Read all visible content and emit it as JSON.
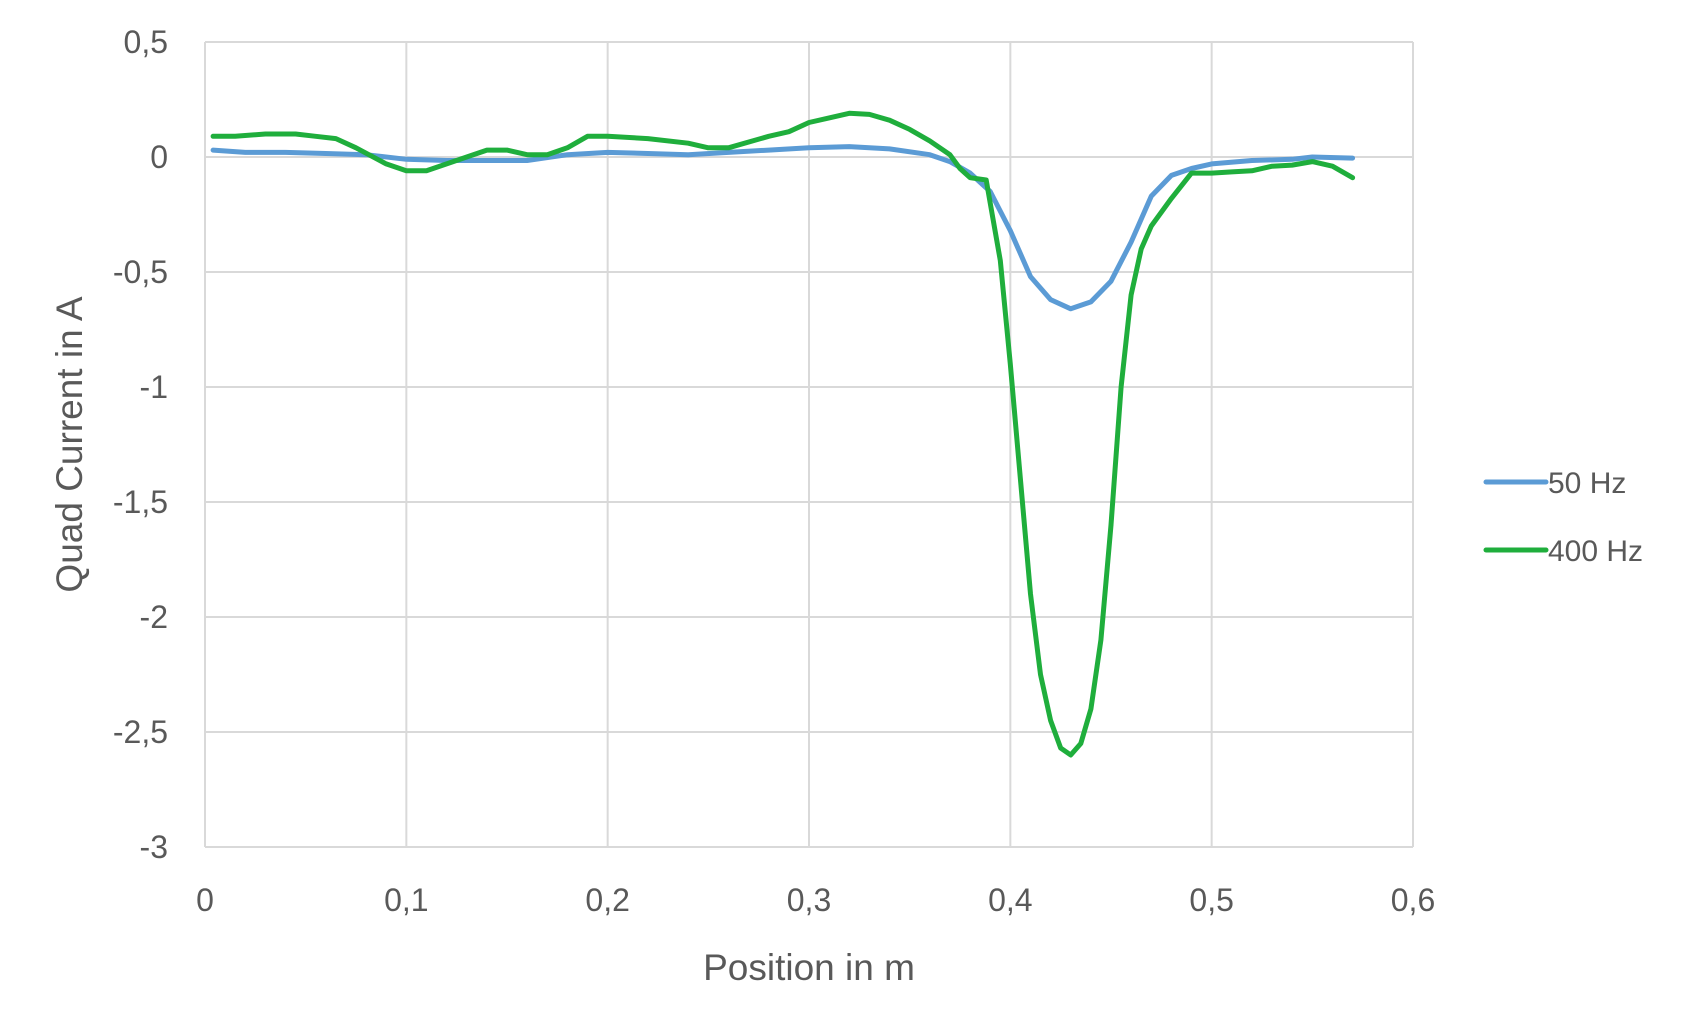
{
  "chart_data": {
    "type": "line",
    "title": "",
    "xlabel": "Position in m",
    "ylabel": "Quad Current in A",
    "xlim": [
      0,
      0.6
    ],
    "ylim": [
      -3,
      0.5
    ],
    "x_ticks": [
      "0",
      "0,1",
      "0,2",
      "0,3",
      "0,4",
      "0,5",
      "0,6"
    ],
    "y_ticks": [
      "0,5",
      "0",
      "-0,5",
      "-1",
      "-1,5",
      "-2",
      "-2,5",
      "-3"
    ],
    "grid": true,
    "legend_position": "right",
    "series": [
      {
        "name": "50 Hz",
        "color": "#5b9bd5",
        "points": [
          [
            0.004,
            0.03
          ],
          [
            0.02,
            0.02
          ],
          [
            0.04,
            0.02
          ],
          [
            0.06,
            0.015
          ],
          [
            0.08,
            0.01
          ],
          [
            0.1,
            -0.01
          ],
          [
            0.12,
            -0.015
          ],
          [
            0.14,
            -0.015
          ],
          [
            0.16,
            -0.015
          ],
          [
            0.18,
            0.01
          ],
          [
            0.2,
            0.02
          ],
          [
            0.22,
            0.015
          ],
          [
            0.24,
            0.01
          ],
          [
            0.26,
            0.02
          ],
          [
            0.28,
            0.03
          ],
          [
            0.3,
            0.04
          ],
          [
            0.32,
            0.045
          ],
          [
            0.34,
            0.035
          ],
          [
            0.36,
            0.01
          ],
          [
            0.37,
            -0.02
          ],
          [
            0.38,
            -0.07
          ],
          [
            0.39,
            -0.15
          ],
          [
            0.4,
            -0.32
          ],
          [
            0.41,
            -0.52
          ],
          [
            0.42,
            -0.62
          ],
          [
            0.43,
            -0.66
          ],
          [
            0.44,
            -0.63
          ],
          [
            0.45,
            -0.54
          ],
          [
            0.46,
            -0.37
          ],
          [
            0.47,
            -0.17
          ],
          [
            0.48,
            -0.08
          ],
          [
            0.49,
            -0.05
          ],
          [
            0.5,
            -0.03
          ],
          [
            0.52,
            -0.015
          ],
          [
            0.54,
            -0.01
          ],
          [
            0.55,
            0.0
          ],
          [
            0.57,
            -0.005
          ]
        ]
      },
      {
        "name": "400 Hz",
        "color": "#1fae3c",
        "points": [
          [
            0.004,
            0.09
          ],
          [
            0.015,
            0.09
          ],
          [
            0.03,
            0.1
          ],
          [
            0.045,
            0.1
          ],
          [
            0.055,
            0.09
          ],
          [
            0.065,
            0.08
          ],
          [
            0.075,
            0.04
          ],
          [
            0.09,
            -0.03
          ],
          [
            0.1,
            -0.06
          ],
          [
            0.11,
            -0.06
          ],
          [
            0.12,
            -0.03
          ],
          [
            0.13,
            0.0
          ],
          [
            0.14,
            0.03
          ],
          [
            0.15,
            0.03
          ],
          [
            0.16,
            0.01
          ],
          [
            0.17,
            0.01
          ],
          [
            0.18,
            0.04
          ],
          [
            0.19,
            0.09
          ],
          [
            0.2,
            0.09
          ],
          [
            0.22,
            0.08
          ],
          [
            0.24,
            0.06
          ],
          [
            0.25,
            0.04
          ],
          [
            0.26,
            0.04
          ],
          [
            0.28,
            0.09
          ],
          [
            0.29,
            0.11
          ],
          [
            0.3,
            0.15
          ],
          [
            0.31,
            0.17
          ],
          [
            0.32,
            0.19
          ],
          [
            0.33,
            0.185
          ],
          [
            0.34,
            0.16
          ],
          [
            0.35,
            0.12
          ],
          [
            0.36,
            0.07
          ],
          [
            0.37,
            0.01
          ],
          [
            0.375,
            -0.05
          ],
          [
            0.38,
            -0.09
          ],
          [
            0.388,
            -0.1
          ],
          [
            0.39,
            -0.2
          ],
          [
            0.395,
            -0.45
          ],
          [
            0.4,
            -0.9
          ],
          [
            0.405,
            -1.4
          ],
          [
            0.41,
            -1.9
          ],
          [
            0.415,
            -2.25
          ],
          [
            0.42,
            -2.45
          ],
          [
            0.425,
            -2.57
          ],
          [
            0.43,
            -2.6
          ],
          [
            0.435,
            -2.55
          ],
          [
            0.44,
            -2.4
          ],
          [
            0.445,
            -2.1
          ],
          [
            0.45,
            -1.6
          ],
          [
            0.455,
            -1.0
          ],
          [
            0.46,
            -0.6
          ],
          [
            0.465,
            -0.4
          ],
          [
            0.47,
            -0.3
          ],
          [
            0.48,
            -0.18
          ],
          [
            0.49,
            -0.07
          ],
          [
            0.5,
            -0.07
          ],
          [
            0.51,
            -0.065
          ],
          [
            0.52,
            -0.06
          ],
          [
            0.53,
            -0.04
          ],
          [
            0.54,
            -0.035
          ],
          [
            0.55,
            -0.02
          ],
          [
            0.56,
            -0.04
          ],
          [
            0.57,
            -0.09
          ]
        ]
      }
    ]
  }
}
